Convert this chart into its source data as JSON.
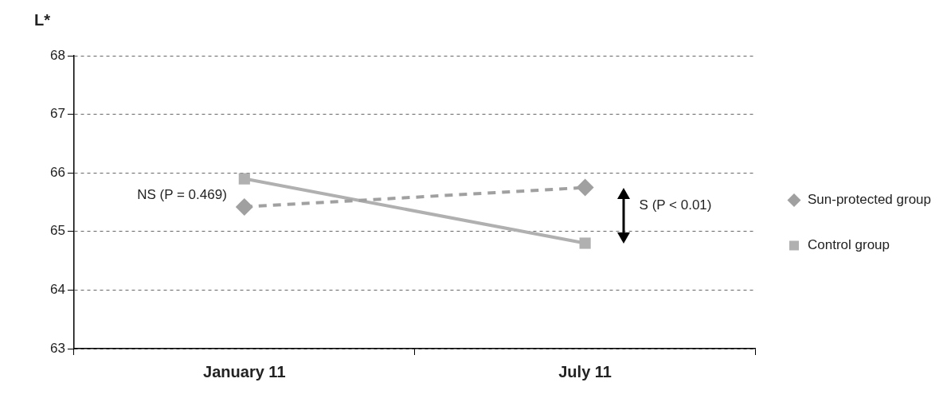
{
  "chart_data": {
    "type": "line",
    "ylabel": "L*",
    "categories": [
      "January 11",
      "July 11"
    ],
    "series": [
      {
        "name": "Sun-protected group",
        "color": "#a0a0a0",
        "values": [
          65.42,
          65.75
        ],
        "marker": "diamond",
        "line_style": "dashed"
      },
      {
        "name": "Control group",
        "color": "#b0b0b0",
        "values": [
          65.9,
          64.8
        ],
        "marker": "square",
        "line_style": "solid"
      }
    ],
    "ylim": [
      63,
      68
    ],
    "yticks": [
      63,
      64,
      65,
      66,
      67,
      68
    ],
    "grid": "y",
    "legend": "right",
    "annotations": [
      {
        "text": "NS (P = 0.469)",
        "x": "January 11",
        "y": 65.62
      },
      "S (P < 0.01)"
    ]
  }
}
